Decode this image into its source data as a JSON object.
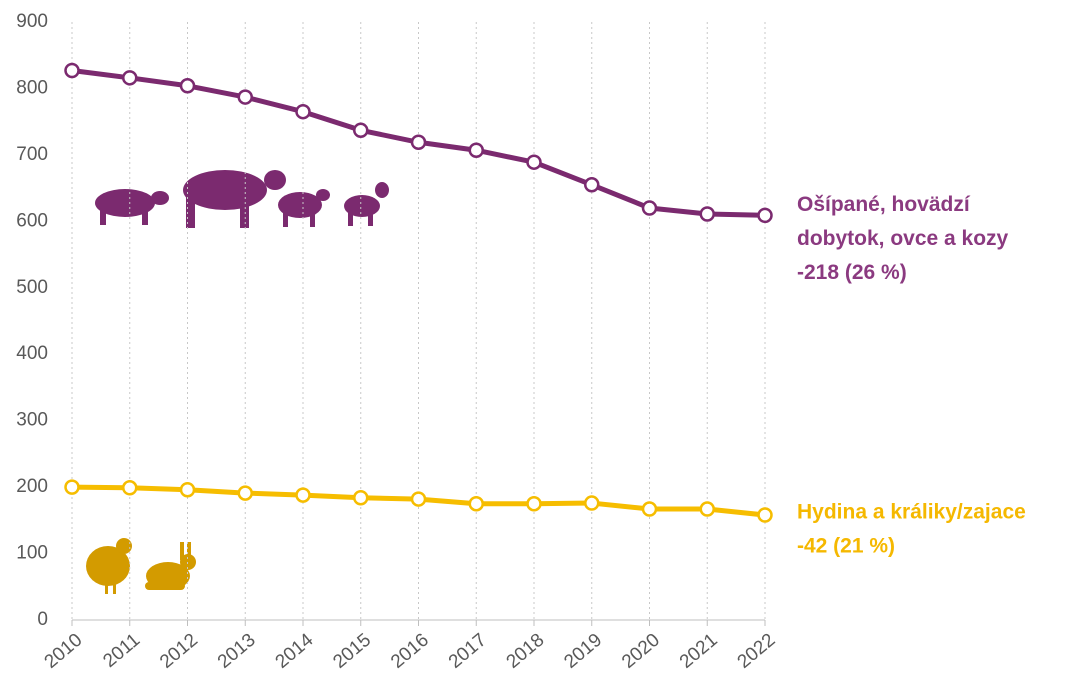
{
  "chart_data": {
    "type": "line",
    "categories": [
      "2010",
      "2011",
      "2012",
      "2013",
      "2014",
      "2015",
      "2016",
      "2017",
      "2018",
      "2019",
      "2020",
      "2021",
      "2022"
    ],
    "series": [
      {
        "label": [
          "Ošípané, hovädzí",
          "dobytok, ovce a kozy",
          "-218 (26 %)"
        ],
        "color": "#7b2a6f",
        "text_color": "#8b3a80",
        "values": [
          827,
          816,
          804,
          787,
          765,
          737,
          719,
          707,
          689,
          655,
          620,
          611,
          609
        ]
      },
      {
        "label": [
          "Hydina a králiky/zajace",
          "-42 (21 %)"
        ],
        "color": "#f6bd00",
        "text_color": "#f5b800",
        "values": [
          200,
          199,
          196,
          191,
          188,
          184,
          182,
          175,
          175,
          176,
          167,
          167,
          158
        ]
      }
    ],
    "ylim": [
      0,
      900
    ],
    "yticks": [
      0,
      100,
      200,
      300,
      400,
      500,
      600,
      700,
      800,
      900
    ],
    "grid": "x"
  }
}
